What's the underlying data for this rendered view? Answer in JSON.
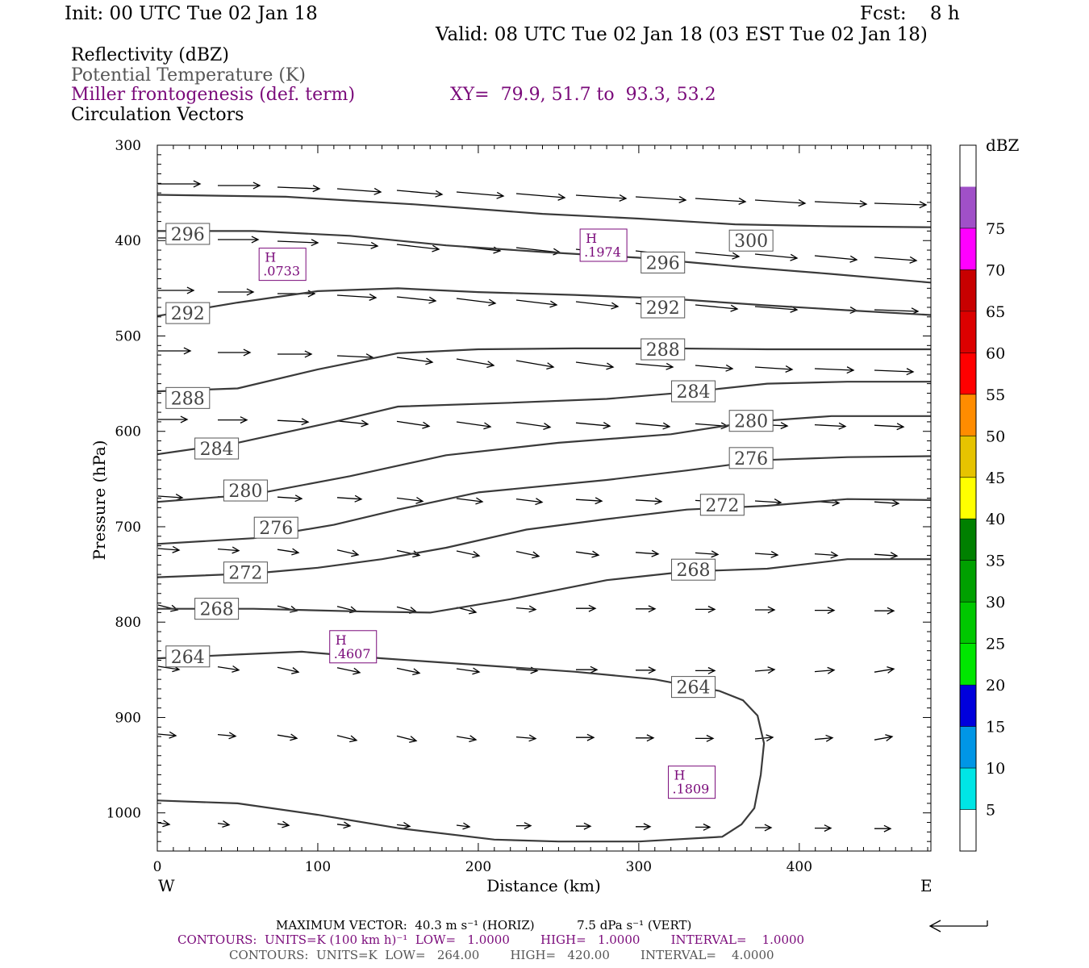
{
  "header": {
    "init": "Init: 00 UTC Tue 02 Jan 18",
    "fcst": "Fcst:    8 h",
    "valid": "Valid: 08 UTC Tue 02 Jan 18 (03 EST Tue 02 Jan 18)"
  },
  "fields": {
    "reflectivity": "Reflectivity (dBZ)",
    "theta": "Potential Temperature (K)",
    "frontogenesis": "Miller frontogenesis (def. term)",
    "xy": "XY=  79.9, 51.7 to  93.3, 53.2",
    "vectors": "Circulation Vectors"
  },
  "colors": {
    "purple": "#7a0a7a",
    "contour": "#3a3a3a",
    "colorbar": [
      "#ffffff",
      "#00e5e5",
      "#0096e6",
      "#0000dc",
      "#00e600",
      "#00c800",
      "#00a000",
      "#008000",
      "#ffff00",
      "#e6c300",
      "#ff8c00",
      "#ff0000",
      "#dc0000",
      "#c80000",
      "#ff00ff",
      "#a050c8",
      "#ffffff"
    ]
  },
  "footer": {
    "maxvec": "MAXIMUM VECTOR:  40.3 m s⁻¹ (HORIZ)           7.5 dPa s⁻¹ (VERT)",
    "contours1": "CONTOURS:  UNITS=K (100 km h)⁻¹  LOW=   1.0000        HIGH=   1.0000        INTERVAL=    1.0000",
    "contours2": "CONTOURS:  UNITS=K  LOW=   264.00        HIGH=   420.00        INTERVAL=    4.0000"
  },
  "chart_data": {
    "type": "cross-section",
    "xlabel": "Distance (km)",
    "ylabel": "Pressure (hPa)",
    "xlim": [
      0,
      482
    ],
    "ylim": [
      1040,
      300
    ],
    "x_ticks": [
      0,
      100,
      200,
      300,
      400
    ],
    "y_ticks": [
      300,
      400,
      500,
      600,
      700,
      800,
      900,
      1000
    ],
    "x_end_labels": {
      "left": "W",
      "right": "E"
    },
    "colorbar": {
      "unit": "dBZ",
      "levels": [
        5,
        10,
        15,
        20,
        25,
        30,
        35,
        40,
        45,
        50,
        55,
        60,
        65,
        70,
        75
      ]
    },
    "isentropes": [
      {
        "theta": 296,
        "labels": [
          [
            19,
            393
          ],
          [
            315,
            423
          ]
        ],
        "points": [
          [
            0,
            390
          ],
          [
            60,
            390
          ],
          [
            120,
            395
          ],
          [
            180,
            405
          ],
          [
            240,
            412
          ],
          [
            300,
            418
          ],
          [
            360,
            427
          ],
          [
            420,
            435
          ],
          [
            482,
            444
          ]
        ]
      },
      {
        "theta": 300,
        "labels": [
          [
            370,
            400
          ]
        ],
        "points": [
          [
            0,
            352
          ],
          [
            80,
            354
          ],
          [
            160,
            362
          ],
          [
            240,
            372
          ],
          [
            300,
            377
          ],
          [
            360,
            383
          ],
          [
            420,
            385
          ],
          [
            482,
            386
          ]
        ]
      },
      {
        "theta": 292,
        "labels": [
          [
            19,
            476
          ],
          [
            315,
            470
          ]
        ],
        "points": [
          [
            0,
            479
          ],
          [
            50,
            465
          ],
          [
            100,
            453
          ],
          [
            150,
            450
          ],
          [
            200,
            454
          ],
          [
            260,
            457
          ],
          [
            320,
            461
          ],
          [
            380,
            468
          ],
          [
            430,
            473
          ],
          [
            482,
            478
          ]
        ]
      },
      {
        "theta": 288,
        "labels": [
          [
            19,
            565
          ],
          [
            315,
            514
          ]
        ],
        "points": [
          [
            0,
            558
          ],
          [
            50,
            555
          ],
          [
            100,
            535
          ],
          [
            150,
            518
          ],
          [
            200,
            514
          ],
          [
            260,
            513
          ],
          [
            320,
            513
          ],
          [
            380,
            514
          ],
          [
            430,
            514
          ],
          [
            482,
            514
          ]
        ]
      },
      {
        "theta": 284,
        "labels": [
          [
            37,
            618
          ],
          [
            334,
            558
          ]
        ],
        "points": [
          [
            0,
            624
          ],
          [
            50,
            612
          ],
          [
            110,
            590
          ],
          [
            150,
            574
          ],
          [
            220,
            570
          ],
          [
            280,
            566
          ],
          [
            330,
            559
          ],
          [
            380,
            550
          ],
          [
            430,
            548
          ],
          [
            482,
            548
          ]
        ]
      },
      {
        "theta": 280,
        "labels": [
          [
            55,
            662
          ],
          [
            370,
            589
          ]
        ],
        "points": [
          [
            0,
            674
          ],
          [
            60,
            666
          ],
          [
            120,
            647
          ],
          [
            180,
            625
          ],
          [
            250,
            612
          ],
          [
            320,
            603
          ],
          [
            370,
            590
          ],
          [
            420,
            584
          ],
          [
            482,
            584
          ]
        ]
      },
      {
        "theta": 276,
        "labels": [
          [
            74,
            701
          ],
          [
            370,
            628
          ]
        ],
        "points": [
          [
            0,
            718
          ],
          [
            60,
            712
          ],
          [
            110,
            698
          ],
          [
            150,
            682
          ],
          [
            200,
            664
          ],
          [
            280,
            651
          ],
          [
            330,
            641
          ],
          [
            380,
            630
          ],
          [
            430,
            627
          ],
          [
            482,
            626
          ]
        ]
      },
      {
        "theta": 272,
        "labels": [
          [
            55,
            748
          ],
          [
            352,
            677
          ]
        ],
        "points": [
          [
            0,
            753
          ],
          [
            60,
            749
          ],
          [
            100,
            743
          ],
          [
            140,
            734
          ],
          [
            180,
            722
          ],
          [
            230,
            703
          ],
          [
            280,
            692
          ],
          [
            330,
            682
          ],
          [
            380,
            678
          ],
          [
            430,
            671
          ],
          [
            482,
            672
          ]
        ]
      },
      {
        "theta": 268,
        "labels": [
          [
            37,
            786
          ],
          [
            334,
            745
          ]
        ],
        "points": [
          [
            0,
            786
          ],
          [
            60,
            786
          ],
          [
            130,
            789
          ],
          [
            170,
            790
          ],
          [
            220,
            776
          ],
          [
            280,
            756
          ],
          [
            330,
            747
          ],
          [
            380,
            744
          ],
          [
            430,
            734
          ],
          [
            482,
            734
          ]
        ]
      },
      {
        "theta": 264,
        "labels": [
          [
            19,
            836
          ],
          [
            334,
            868
          ]
        ],
        "points": [
          [
            0,
            838
          ],
          [
            50,
            834
          ],
          [
            90,
            831
          ],
          [
            140,
            838
          ],
          [
            200,
            845
          ],
          [
            260,
            852
          ],
          [
            310,
            860
          ],
          [
            335,
            868
          ],
          [
            350,
            872
          ],
          [
            365,
            882
          ],
          [
            374,
            898
          ],
          [
            378,
            927
          ],
          [
            376,
            960
          ],
          [
            372,
            995
          ],
          [
            364,
            1012
          ],
          [
            352,
            1025
          ],
          [
            300,
            1030
          ],
          [
            250,
            1030
          ],
          [
            210,
            1028
          ],
          [
            150,
            1016
          ],
          [
            100,
            1002
          ],
          [
            50,
            990
          ],
          [
            0,
            987
          ]
        ]
      }
    ],
    "frontogenesis_maxima": [
      {
        "label": "H",
        "value": ".0733",
        "x": 78,
        "p": 424
      },
      {
        "label": "H",
        "value": ".1974",
        "x": 278,
        "p": 404
      },
      {
        "label": "H",
        "value": ".4607",
        "x": 122,
        "p": 825
      },
      {
        "label": "H",
        "value": ".1809",
        "x": 333,
        "p": 967
      }
    ]
  }
}
